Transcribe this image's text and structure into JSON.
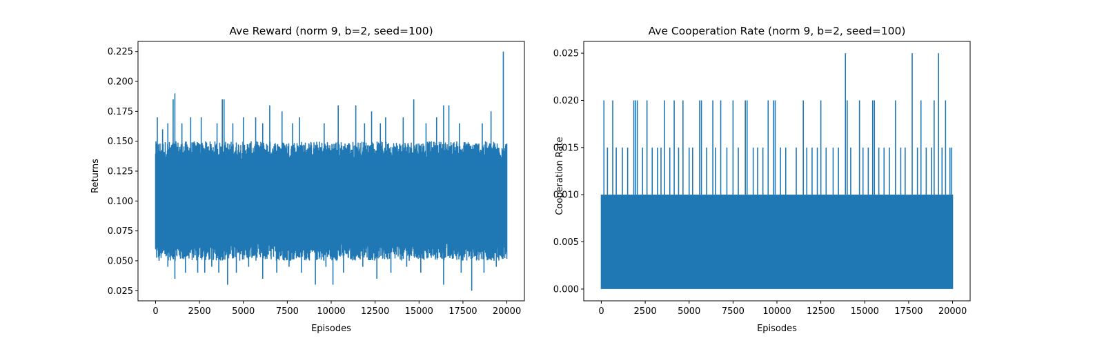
{
  "chart_data": [
    {
      "type": "line",
      "title": "Ave Reward (norm 9, b=2, seed=100)",
      "xlabel": "Episodes",
      "ylabel": "Returns",
      "xlim": [
        -1000,
        21000
      ],
      "ylim": [
        0.0165,
        0.2335
      ],
      "xticks": [
        0,
        2500,
        5000,
        7500,
        10000,
        12500,
        15000,
        17500,
        20000
      ],
      "xtick_labels": [
        "0",
        "2500",
        "5000",
        "7500",
        "10000",
        "12500",
        "15000",
        "17500",
        "20000"
      ],
      "yticks": [
        0.025,
        0.05,
        0.075,
        0.1,
        0.125,
        0.15,
        0.175,
        0.2,
        0.225
      ],
      "ytick_labels": [
        "0.025",
        "0.050",
        "0.075",
        "0.100",
        "0.125",
        "0.150",
        "0.175",
        "0.200",
        "0.225"
      ],
      "grid": false,
      "color": "#1f77b4",
      "series": [
        {
          "x_range": [
            0,
            20000
          ],
          "band": {
            "low": [
              0.05,
              0.065
            ],
            "high": [
              0.135,
              0.15
            ]
          },
          "spikes_high": [
            [
              100,
              0.17
            ],
            [
              400,
              0.16
            ],
            [
              700,
              0.165
            ],
            [
              1000,
              0.185
            ],
            [
              1100,
              0.19
            ],
            [
              1500,
              0.165
            ],
            [
              2000,
              0.17
            ],
            [
              2600,
              0.17
            ],
            [
              3500,
              0.165
            ],
            [
              3800,
              0.185
            ],
            [
              3900,
              0.185
            ],
            [
              4400,
              0.165
            ],
            [
              5000,
              0.17
            ],
            [
              5700,
              0.17
            ],
            [
              6100,
              0.165
            ],
            [
              6500,
              0.18
            ],
            [
              7200,
              0.175
            ],
            [
              7800,
              0.165
            ],
            [
              8200,
              0.17
            ],
            [
              9600,
              0.165
            ],
            [
              10400,
              0.18
            ],
            [
              11400,
              0.18
            ],
            [
              11900,
              0.165
            ],
            [
              12300,
              0.175
            ],
            [
              12800,
              0.165
            ],
            [
              13100,
              0.17
            ],
            [
              14100,
              0.17
            ],
            [
              14700,
              0.185
            ],
            [
              15400,
              0.165
            ],
            [
              16000,
              0.17
            ],
            [
              16400,
              0.18
            ],
            [
              16700,
              0.18
            ],
            [
              17300,
              0.165
            ],
            [
              18600,
              0.165
            ],
            [
              19100,
              0.175
            ],
            [
              19800,
              0.225
            ]
          ],
          "spikes_low": [
            [
              200,
              0.05
            ],
            [
              700,
              0.045
            ],
            [
              1100,
              0.035
            ],
            [
              1700,
              0.04
            ],
            [
              2400,
              0.04
            ],
            [
              2800,
              0.04
            ],
            [
              3200,
              0.045
            ],
            [
              3600,
              0.04
            ],
            [
              4100,
              0.03
            ],
            [
              4600,
              0.04
            ],
            [
              5300,
              0.045
            ],
            [
              6100,
              0.035
            ],
            [
              6900,
              0.04
            ],
            [
              7600,
              0.045
            ],
            [
              8300,
              0.04
            ],
            [
              9100,
              0.03
            ],
            [
              9700,
              0.045
            ],
            [
              10100,
              0.03
            ],
            [
              10700,
              0.04
            ],
            [
              11800,
              0.045
            ],
            [
              12600,
              0.035
            ],
            [
              13400,
              0.04
            ],
            [
              14300,
              0.045
            ],
            [
              15100,
              0.04
            ],
            [
              16400,
              0.03
            ],
            [
              17400,
              0.04
            ],
            [
              18000,
              0.025
            ],
            [
              18700,
              0.04
            ],
            [
              19400,
              0.045
            ]
          ]
        }
      ]
    },
    {
      "type": "line",
      "title": "Ave Cooperation Rate (norm 9, b=2, seed=100)",
      "xlabel": "Episodes",
      "ylabel": "Cooperation Rate",
      "xlim": [
        -1000,
        21000
      ],
      "ylim": [
        -0.00125,
        0.02625
      ],
      "xticks": [
        0,
        2500,
        5000,
        7500,
        10000,
        12500,
        15000,
        17500,
        20000
      ],
      "xtick_labels": [
        "0",
        "2500",
        "5000",
        "7500",
        "10000",
        "12500",
        "15000",
        "17500",
        "20000"
      ],
      "yticks": [
        0,
        0.005,
        0.01,
        0.015,
        0.02,
        0.025
      ],
      "ytick_labels": [
        "0.000",
        "0.005",
        "0.010",
        "0.015",
        "0.020",
        "0.025"
      ],
      "grid": false,
      "color": "#1f77b4",
      "series": [
        {
          "x_range": [
            0,
            20000
          ],
          "band": {
            "low": [
              0,
              0
            ],
            "high": [
              0.01,
              0.01
            ]
          },
          "spikes_high": [
            [
              150,
              0.02
            ],
            [
              350,
              0.015
            ],
            [
              650,
              0.02
            ],
            [
              850,
              0.015
            ],
            [
              1200,
              0.015
            ],
            [
              1500,
              0.015
            ],
            [
              1850,
              0.02
            ],
            [
              1950,
              0.02
            ],
            [
              2050,
              0.02
            ],
            [
              2350,
              0.015
            ],
            [
              2600,
              0.02
            ],
            [
              2900,
              0.015
            ],
            [
              3200,
              0.015
            ],
            [
              3400,
              0.015
            ],
            [
              3600,
              0.02
            ],
            [
              3900,
              0.015
            ],
            [
              4150,
              0.02
            ],
            [
              4400,
              0.015
            ],
            [
              4650,
              0.02
            ],
            [
              5000,
              0.015
            ],
            [
              5200,
              0.015
            ],
            [
              5600,
              0.02
            ],
            [
              5700,
              0.02
            ],
            [
              6000,
              0.015
            ],
            [
              6350,
              0.02
            ],
            [
              6500,
              0.015
            ],
            [
              6800,
              0.02
            ],
            [
              7150,
              0.015
            ],
            [
              7500,
              0.02
            ],
            [
              7800,
              0.015
            ],
            [
              8200,
              0.02
            ],
            [
              8300,
              0.02
            ],
            [
              8650,
              0.015
            ],
            [
              8900,
              0.015
            ],
            [
              9200,
              0.015
            ],
            [
              9500,
              0.02
            ],
            [
              9800,
              0.02
            ],
            [
              9900,
              0.02
            ],
            [
              10200,
              0.015
            ],
            [
              10500,
              0.015
            ],
            [
              11100,
              0.015
            ],
            [
              11500,
              0.02
            ],
            [
              11700,
              0.015
            ],
            [
              12000,
              0.015
            ],
            [
              12300,
              0.015
            ],
            [
              12500,
              0.02
            ],
            [
              12800,
              0.015
            ],
            [
              13200,
              0.015
            ],
            [
              13500,
              0.015
            ],
            [
              13900,
              0.025
            ],
            [
              14000,
              0.02
            ],
            [
              14200,
              0.015
            ],
            [
              14700,
              0.02
            ],
            [
              14900,
              0.015
            ],
            [
              15200,
              0.015
            ],
            [
              15450,
              0.02
            ],
            [
              15550,
              0.02
            ],
            [
              15800,
              0.015
            ],
            [
              16100,
              0.015
            ],
            [
              16400,
              0.015
            ],
            [
              16750,
              0.02
            ],
            [
              17050,
              0.015
            ],
            [
              17300,
              0.015
            ],
            [
              17700,
              0.025
            ],
            [
              18000,
              0.015
            ],
            [
              18200,
              0.02
            ],
            [
              18500,
              0.015
            ],
            [
              18800,
              0.015
            ],
            [
              18950,
              0.02
            ],
            [
              19200,
              0.025
            ],
            [
              19400,
              0.015
            ],
            [
              19600,
              0.02
            ],
            [
              19850,
              0.015
            ],
            [
              19950,
              0.015
            ]
          ],
          "spikes_low": []
        }
      ]
    }
  ]
}
